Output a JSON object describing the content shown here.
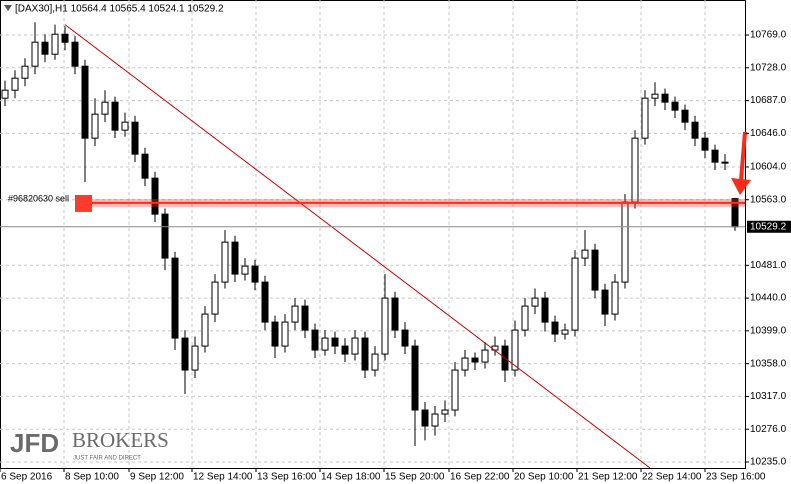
{
  "chart_data": {
    "type": "candlestick",
    "title": "[DAX30],H1  10564.4 10565.4 10524.1 10529.2",
    "open": [
      10690,
      10700,
      10715,
      10730,
      10760,
      10745,
      10770,
      10760,
      10730,
      10640,
      10670,
      10685,
      10650,
      10660,
      10620,
      10590,
      10545,
      10490,
      10390,
      10350,
      10380,
      10420,
      10460,
      10510,
      10470,
      10480,
      10460,
      10410,
      10380,
      10410,
      10430,
      10400,
      10375,
      10390,
      10380,
      10370,
      10390,
      10350,
      10370,
      10440,
      10400,
      10380,
      10300,
      10280,
      10295,
      10300,
      10350,
      10365,
      10360,
      10375,
      10380,
      10350,
      10400,
      10430,
      10440,
      10410,
      10395,
      10400,
      10490,
      10500,
      10450,
      10420,
      10460,
      10560,
      10640,
      10690,
      10695,
      10685,
      10675,
      10660,
      10640,
      10625,
      10610,
      10564.4
    ],
    "high": [
      10712,
      10725,
      10740,
      10785,
      10770,
      10782,
      10780,
      10768,
      10738,
      10690,
      10700,
      10692,
      10672,
      10668,
      10628,
      10598,
      10552,
      10498,
      10400,
      10392,
      10430,
      10470,
      10525,
      10518,
      10490,
      10488,
      10468,
      10418,
      10420,
      10440,
      10438,
      10408,
      10400,
      10398,
      10390,
      10400,
      10398,
      10380,
      10470,
      10448,
      10410,
      10388,
      10310,
      10305,
      10312,
      10360,
      10375,
      10372,
      10385,
      10392,
      10388,
      10412,
      10440,
      10452,
      10448,
      10418,
      10408,
      10500,
      10525,
      10508,
      10458,
      10470,
      10570,
      10650,
      10700,
      10710,
      10702,
      10692,
      10682,
      10668,
      10648,
      10632,
      10620,
      10565.4
    ],
    "low": [
      10680,
      10690,
      10705,
      10720,
      10735,
      10738,
      10750,
      10720,
      10585,
      10630,
      10660,
      10640,
      10642,
      10610,
      10580,
      10535,
      10475,
      10375,
      10320,
      10340,
      10372,
      10410,
      10452,
      10460,
      10462,
      10450,
      10400,
      10365,
      10372,
      10400,
      10390,
      10365,
      10368,
      10370,
      10360,
      10362,
      10340,
      10342,
      10362,
      10390,
      10370,
      10255,
      10262,
      10268,
      10285,
      10292,
      10342,
      10350,
      10352,
      10368,
      10335,
      10342,
      10392,
      10420,
      10398,
      10385,
      10388,
      10392,
      10480,
      10440,
      10405,
      10412,
      10452,
      10552,
      10632,
      10680,
      10675,
      10665,
      10650,
      10630,
      10615,
      10600,
      10600,
      10524.1
    ],
    "close": [
      10700,
      10715,
      10730,
      10760,
      10745,
      10770,
      10760,
      10730,
      10640,
      10670,
      10685,
      10650,
      10660,
      10620,
      10590,
      10545,
      10490,
      10390,
      10350,
      10380,
      10420,
      10460,
      10510,
      10470,
      10480,
      10460,
      10410,
      10380,
      10410,
      10430,
      10400,
      10375,
      10390,
      10380,
      10370,
      10390,
      10350,
      10370,
      10440,
      10400,
      10380,
      10300,
      10280,
      10295,
      10300,
      10350,
      10365,
      10360,
      10375,
      10380,
      10350,
      10400,
      10430,
      10440,
      10410,
      10395,
      10400,
      10490,
      10500,
      10450,
      10420,
      10460,
      10560,
      10640,
      10690,
      10695,
      10685,
      10675,
      10660,
      10640,
      10625,
      10610,
      10610,
      10529.2
    ],
    "xlim": [
      -0.5,
      74
    ],
    "xticks": [
      {
        "value": -0.5,
        "label": "6 Sep 2016"
      },
      {
        "value": 5.9,
        "label": "8 Sep 10:00"
      },
      {
        "value": 12.4,
        "label": "9 Sep 12:00"
      },
      {
        "value": 18.7,
        "label": "12 Sep 14:00"
      },
      {
        "value": 25.1,
        "label": "13 Sep 16:00"
      },
      {
        "value": 31.5,
        "label": "14 Sep 18:00"
      },
      {
        "value": 37.9,
        "label": "15 Sep 20:00"
      },
      {
        "value": 44.4,
        "label": "16 Sep 22:00"
      },
      {
        "value": 50.8,
        "label": "20 Sep 10:00"
      },
      {
        "value": 57.2,
        "label": "21 Sep 12:00"
      },
      {
        "value": 63.6,
        "label": "22 Sep 14:00"
      },
      {
        "value": 70,
        "label": "23 Sep 16:00"
      }
    ],
    "ylim": [
      10227.5,
      10812.8
    ],
    "yticks": [
      {
        "value": 10769,
        "label": "10769.0"
      },
      {
        "value": 10728,
        "label": "10728.0"
      },
      {
        "value": 10687,
        "label": "10687.0"
      },
      {
        "value": 10646,
        "label": "10646.0"
      },
      {
        "value": 10604,
        "label": "10604.0"
      },
      {
        "value": 10563,
        "label": "10563.0"
      },
      {
        "value": 10481,
        "label": "10481.0"
      },
      {
        "value": 10440,
        "label": "10440.0"
      },
      {
        "value": 10399,
        "label": "10399.0"
      },
      {
        "value": 10358,
        "label": "10358.0"
      },
      {
        "value": 10317,
        "label": "10317.0"
      },
      {
        "value": 10276,
        "label": "10276.0"
      },
      {
        "value": 10235,
        "label": "10235.0"
      }
    ],
    "grid": true,
    "current_price": {
      "value": 10529.2,
      "label": "10529.2"
    },
    "order": {
      "label": "#96820630 sell",
      "value": 10559
    },
    "trendline": {
      "x": [
        6,
        64.5
      ],
      "y": [
        10782,
        10227.5
      ]
    },
    "logo": {
      "brand": "JFD",
      "name": "BROKERS",
      "tagline": "JUST FAIR AND DIRECT"
    }
  }
}
